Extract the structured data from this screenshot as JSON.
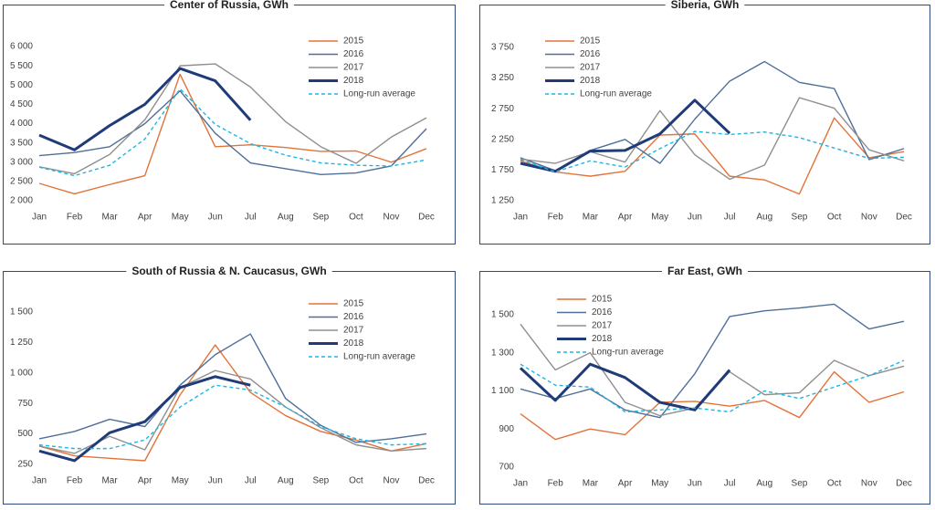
{
  "chart_data": [
    {
      "type": "line",
      "title": "Center of Russia, GWh",
      "categories": [
        "Jan",
        "Feb",
        "Mar",
        "Apr",
        "May",
        "Jun",
        "Jul",
        "Aug",
        "Sep",
        "Oct",
        "Nov",
        "Dec"
      ],
      "ylim": [
        2000,
        6000
      ],
      "yticks": [
        {
          "value": 2000,
          "label": "2 000"
        },
        {
          "value": 2500,
          "label": "2 500"
        },
        {
          "value": 3000,
          "label": "3 000"
        },
        {
          "value": 3500,
          "label": "3 500"
        },
        {
          "value": 4000,
          "label": "4 000"
        },
        {
          "value": 4500,
          "label": "4 500"
        },
        {
          "value": 5000,
          "label": "5 000"
        },
        {
          "value": 5500,
          "label": "5 500"
        },
        {
          "value": 6000,
          "label": "6 000"
        }
      ],
      "grid": false,
      "legend": "upper center",
      "series": [
        {
          "name": "2015",
          "color": "#e2733a",
          "values": [
            2450,
            2180,
            2420,
            2650,
            5280,
            3400,
            3450,
            3380,
            3280,
            3290,
            3000,
            3350
          ]
        },
        {
          "name": "2016",
          "color": "#4f6f99",
          "values": [
            3170,
            3250,
            3400,
            4000,
            4850,
            3750,
            2980,
            2830,
            2680,
            2720,
            2900,
            3870
          ]
        },
        {
          "name": "2017",
          "color": "#8f8f8f",
          "values": [
            2880,
            2700,
            3200,
            4100,
            5500,
            5550,
            4950,
            4050,
            3400,
            2970,
            3650,
            4150
          ]
        },
        {
          "name": "2018",
          "color": "#1f3b78",
          "linewidth": 3,
          "values": [
            3700,
            3320,
            3950,
            4500,
            5430,
            5110,
            4090,
            null,
            null,
            null,
            null,
            null
          ]
        },
        {
          "name": "Long-run average",
          "color": "#1fb5e2",
          "linestyle": "dashed",
          "values": [
            2870,
            2650,
            2920,
            3600,
            4900,
            3980,
            3480,
            3180,
            2980,
            2920,
            2900,
            3060
          ]
        }
      ]
    },
    {
      "type": "line",
      "title": "Siberia, GWh",
      "categories": [
        "Jan",
        "Feb",
        "Mar",
        "Apr",
        "May",
        "Jun",
        "Jul",
        "Aug",
        "Sep",
        "Oct",
        "Nov",
        "Dec"
      ],
      "ylim": [
        1250,
        3750
      ],
      "yticks": [
        {
          "value": 1250,
          "label": "1 250"
        },
        {
          "value": 1750,
          "label": "1 750"
        },
        {
          "value": 2250,
          "label": "2 250"
        },
        {
          "value": 2750,
          "label": "2 750"
        },
        {
          "value": 3250,
          "label": "3 250"
        },
        {
          "value": 3750,
          "label": "3 750"
        }
      ],
      "grid": false,
      "legend": "upper center",
      "series": [
        {
          "name": "2015",
          "color": "#e2733a",
          "values": [
            1900,
            1720,
            1650,
            1730,
            2320,
            2340,
            1650,
            1590,
            1360,
            2600,
            1950,
            2050
          ]
        },
        {
          "name": "2016",
          "color": "#4f6f99",
          "values": [
            1950,
            1740,
            2070,
            2250,
            1860,
            2580,
            3200,
            3520,
            3180,
            3080,
            1920,
            2100
          ]
        },
        {
          "name": "2017",
          "color": "#8f8f8f",
          "values": [
            1930,
            1860,
            2050,
            1880,
            2720,
            2000,
            1600,
            1830,
            2930,
            2760,
            2080,
            1900
          ]
        },
        {
          "name": "2018",
          "color": "#1f3b78",
          "linewidth": 3,
          "values": [
            1860,
            1730,
            2060,
            2070,
            2340,
            2890,
            2350,
            null,
            null,
            null,
            null,
            null
          ]
        },
        {
          "name": "Long-run average",
          "color": "#1fb5e2",
          "linestyle": "dashed",
          "values": [
            1920,
            1720,
            1900,
            1800,
            2100,
            2380,
            2330,
            2370,
            2280,
            2110,
            1940,
            1960
          ]
        }
      ]
    },
    {
      "type": "line",
      "title": "South of Russia & N. Caucasus, GWh",
      "categories": [
        "Jan",
        "Feb",
        "Mar",
        "Apr",
        "May",
        "Jun",
        "Jul",
        "Aug",
        "Sep",
        "Oct",
        "Nov",
        "Dec"
      ],
      "ylim": [
        250,
        1500
      ],
      "yticks": [
        250,
        500,
        750,
        {
          "value": 1000,
          "label": "1 000"
        },
        {
          "value": 1250,
          "label": "1 250"
        },
        {
          "value": 1500,
          "label": "1 500"
        }
      ],
      "grid": false,
      "legend": "upper center",
      "series": [
        {
          "name": "2015",
          "color": "#e2733a",
          "values": [
            400,
            320,
            300,
            280,
            820,
            1230,
            840,
            650,
            520,
            450,
            360,
            420
          ]
        },
        {
          "name": "2016",
          "color": "#4f6f99",
          "values": [
            460,
            520,
            620,
            560,
            900,
            1150,
            1320,
            790,
            570,
            430,
            460,
            500
          ]
        },
        {
          "name": "2017",
          "color": "#8f8f8f",
          "values": [
            400,
            340,
            480,
            370,
            880,
            1020,
            950,
            720,
            550,
            410,
            360,
            380
          ]
        },
        {
          "name": "2018",
          "color": "#1f3b78",
          "linewidth": 3,
          "values": [
            360,
            280,
            510,
            600,
            880,
            970,
            900,
            null,
            null,
            null,
            null,
            null
          ]
        },
        {
          "name": "Long-run average",
          "color": "#1fb5e2",
          "linestyle": "dashed",
          "values": [
            410,
            380,
            380,
            450,
            720,
            900,
            860,
            720,
            560,
            460,
            410,
            420
          ]
        }
      ]
    },
    {
      "type": "line",
      "title": "Far East, GWh",
      "categories": [
        "Jan",
        "Feb",
        "Mar",
        "Apr",
        "May",
        "Jun",
        "Jul",
        "Aug",
        "Sep",
        "Oct",
        "Nov",
        "Dec"
      ],
      "ylim": [
        700,
        1600
      ],
      "yticks": [
        700,
        900,
        {
          "value": 1100,
          "label": "1 100"
        },
        {
          "value": 1300,
          "label": "1 300"
        },
        {
          "value": 1500,
          "label": "1 500"
        }
      ],
      "grid": false,
      "legend": "upper left",
      "series": [
        {
          "name": "2015",
          "color": "#e2733a",
          "values": [
            980,
            845,
            900,
            870,
            1040,
            1045,
            1020,
            1050,
            960,
            1200,
            1040,
            1095
          ]
        },
        {
          "name": "2016",
          "color": "#4f6f99",
          "values": [
            1110,
            1060,
            1110,
            1000,
            960,
            1190,
            1490,
            1520,
            1535,
            1555,
            1425,
            1465
          ]
        },
        {
          "name": "2017",
          "color": "#8f8f8f",
          "values": [
            1450,
            1210,
            1300,
            1040,
            970,
            1010,
            1200,
            1080,
            1090,
            1260,
            1180,
            1230
          ]
        },
        {
          "name": "2018",
          "color": "#1f3b78",
          "linewidth": 3,
          "values": [
            1220,
            1050,
            1240,
            1170,
            1040,
            1000,
            1210,
            null,
            null,
            null,
            null,
            null
          ]
        },
        {
          "name": "Long-run average",
          "color": "#1fb5e2",
          "linestyle": "dashed",
          "values": [
            1240,
            1130,
            1120,
            990,
            1000,
            1010,
            990,
            1100,
            1060,
            1120,
            1180,
            1260
          ]
        }
      ]
    }
  ]
}
